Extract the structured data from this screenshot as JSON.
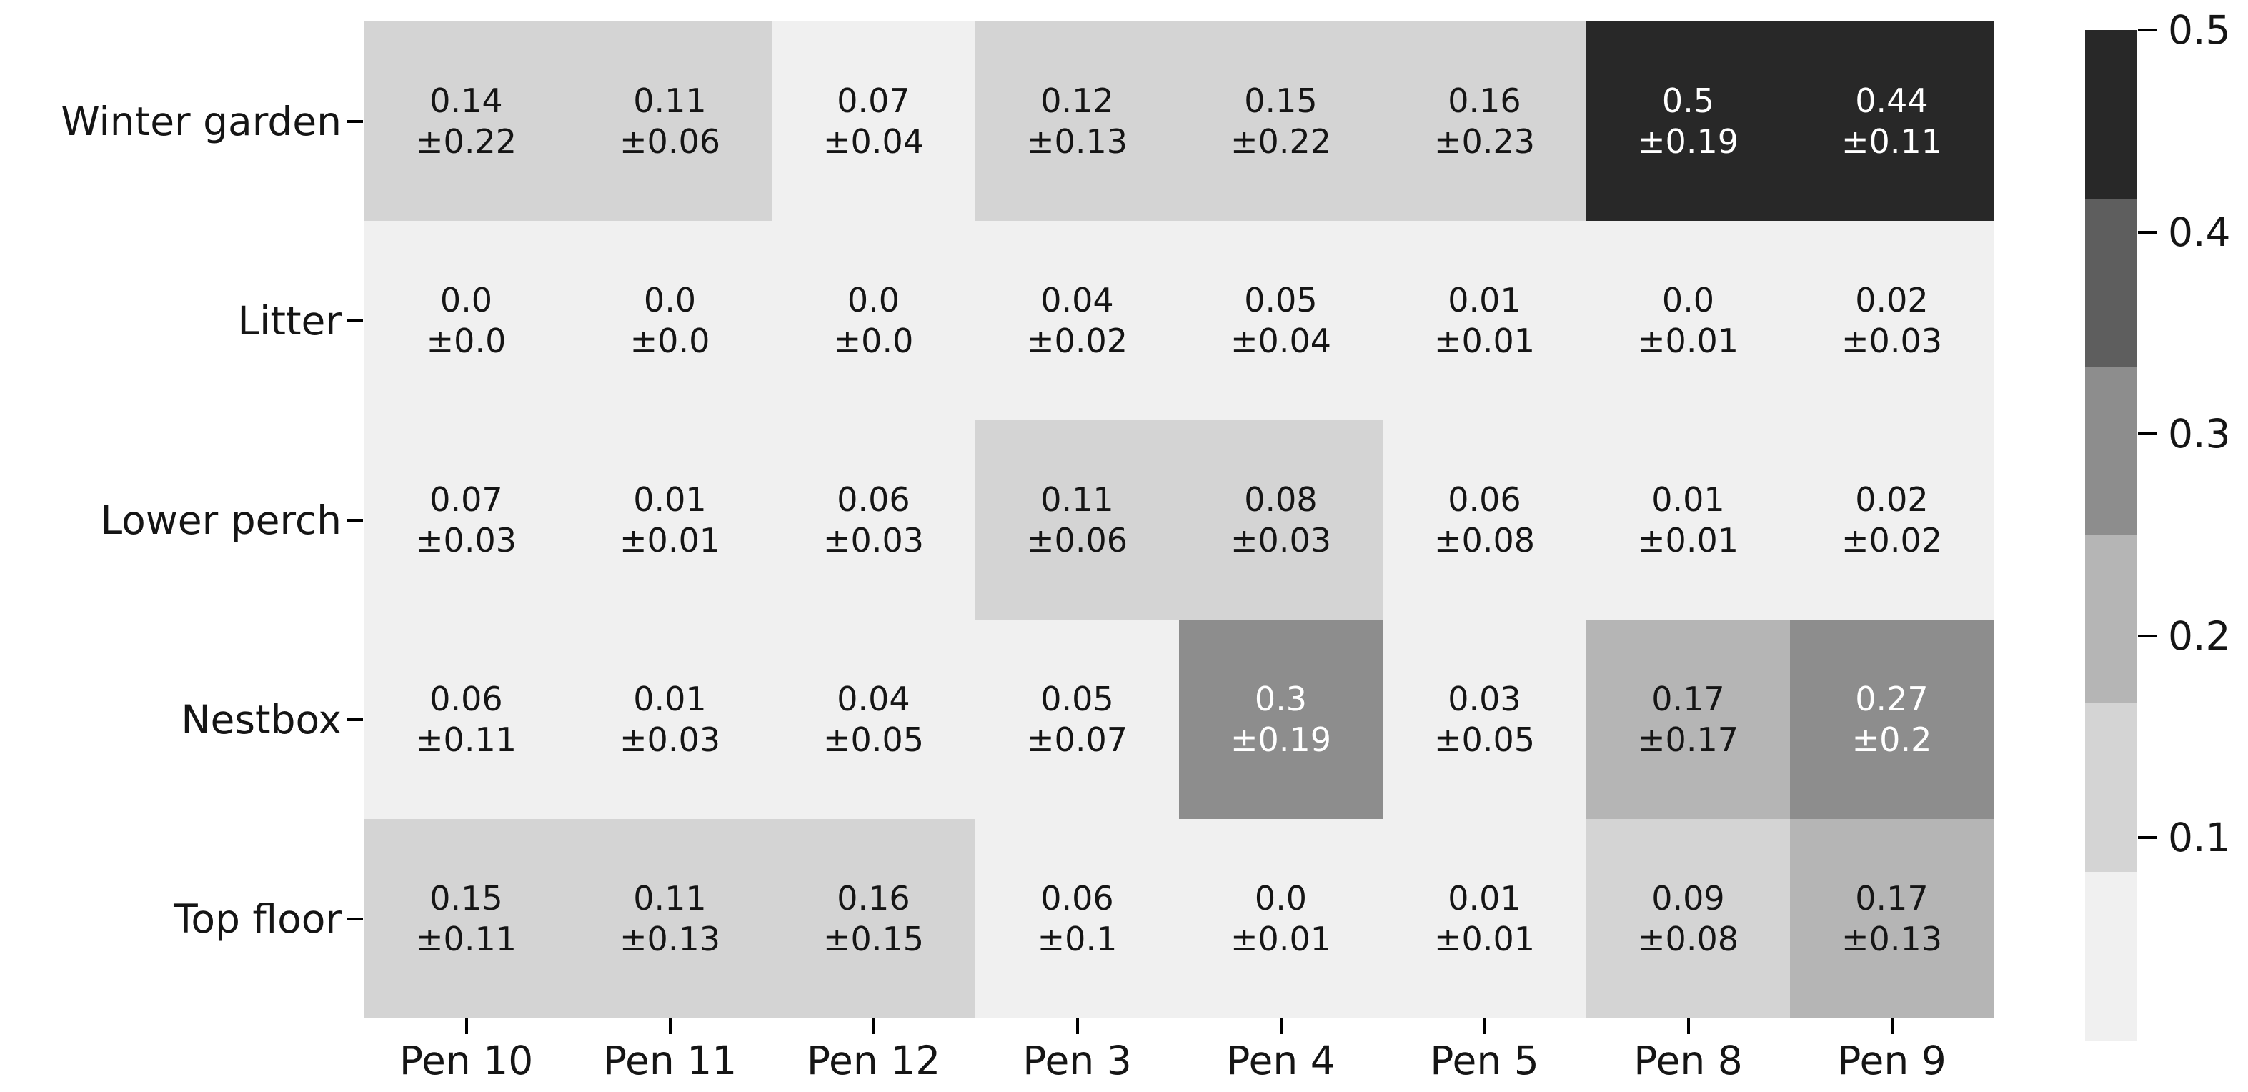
{
  "chart_data": {
    "type": "heatmap",
    "rows": [
      "Winter garden",
      "Litter",
      "Lower perch",
      "Nestbox",
      "Top floor"
    ],
    "columns": [
      "Pen 10",
      "Pen 11",
      "Pen 12",
      "Pen 3",
      "Pen 4",
      "Pen 5",
      "Pen 8",
      "Pen 9"
    ],
    "values": [
      [
        0.14,
        0.11,
        0.07,
        0.12,
        0.15,
        0.16,
        0.5,
        0.44
      ],
      [
        0.0,
        0.0,
        0.0,
        0.04,
        0.05,
        0.01,
        0.0,
        0.02
      ],
      [
        0.07,
        0.01,
        0.06,
        0.11,
        0.08,
        0.06,
        0.01,
        0.02
      ],
      [
        0.06,
        0.01,
        0.04,
        0.05,
        0.3,
        0.03,
        0.17,
        0.27
      ],
      [
        0.15,
        0.11,
        0.16,
        0.06,
        0.0,
        0.01,
        0.09,
        0.17
      ]
    ],
    "errors": [
      [
        0.22,
        0.06,
        0.04,
        0.13,
        0.22,
        0.23,
        0.19,
        0.11
      ],
      [
        0.0,
        0.0,
        0.0,
        0.02,
        0.04,
        0.01,
        0.01,
        0.03
      ],
      [
        0.03,
        0.01,
        0.03,
        0.06,
        0.03,
        0.08,
        0.01,
        0.02
      ],
      [
        0.11,
        0.03,
        0.05,
        0.07,
        0.19,
        0.05,
        0.17,
        0.2
      ],
      [
        0.11,
        0.13,
        0.15,
        0.1,
        0.01,
        0.01,
        0.08,
        0.13
      ]
    ],
    "value_labels": [
      [
        "0.14",
        "0.11",
        "0.07",
        "0.12",
        "0.15",
        "0.16",
        "0.5",
        "0.44"
      ],
      [
        "0.0",
        "0.0",
        "0.0",
        "0.04",
        "0.05",
        "0.01",
        "0.0",
        "0.02"
      ],
      [
        "0.07",
        "0.01",
        "0.06",
        "0.11",
        "0.08",
        "0.06",
        "0.01",
        "0.02"
      ],
      [
        "0.06",
        "0.01",
        "0.04",
        "0.05",
        "0.3",
        "0.03",
        "0.17",
        "0.27"
      ],
      [
        "0.15",
        "0.11",
        "0.16",
        "0.06",
        "0.0",
        "0.01",
        "0.09",
        "0.17"
      ]
    ],
    "error_labels": [
      [
        "±0.22",
        "±0.06",
        "±0.04",
        "±0.13",
        "±0.22",
        "±0.23",
        "±0.19",
        "±0.11"
      ],
      [
        "±0.0",
        "±0.0",
        "±0.0",
        "±0.02",
        "±0.04",
        "±0.01",
        "±0.01",
        "±0.03"
      ],
      [
        "±0.03",
        "±0.01",
        "±0.03",
        "±0.06",
        "±0.03",
        "±0.08",
        "±0.01",
        "±0.02"
      ],
      [
        "±0.11",
        "±0.03",
        "±0.05",
        "±0.07",
        "±0.19",
        "±0.05",
        "±0.17",
        "±0.2"
      ],
      [
        "±0.11",
        "±0.13",
        "±0.15",
        "±0.1",
        "±0.01",
        "±0.01",
        "±0.08",
        "±0.13"
      ]
    ],
    "levels": [
      [
        1,
        1,
        0,
        1,
        1,
        1,
        5,
        5
      ],
      [
        0,
        0,
        0,
        0,
        0,
        0,
        0,
        0
      ],
      [
        0,
        0,
        0,
        1,
        1,
        0,
        0,
        0
      ],
      [
        0,
        0,
        0,
        0,
        3,
        0,
        2,
        3
      ],
      [
        1,
        1,
        1,
        0,
        0,
        0,
        1,
        2
      ]
    ],
    "palette": [
      "#f0f0f0",
      "#d4d4d4",
      "#b5b5b5",
      "#8d8d8d",
      "#5e5e5e",
      "#282828"
    ],
    "annotation_colors": {
      "dark": "#151515",
      "light": "#ffffff"
    },
    "light_text_min_level": 3,
    "grid": false,
    "legend_position": "right",
    "colorbar": {
      "range_min": 0.0,
      "range_max": 0.5,
      "tick_labels": [
        "0.5",
        "0.4",
        "0.3",
        "0.2",
        "0.1"
      ],
      "tick_values": [
        0.5,
        0.4,
        0.3,
        0.2,
        0.1
      ],
      "segment_colors_top_to_bottom": [
        "#282828",
        "#5e5e5e",
        "#8d8d8d",
        "#b5b5b5",
        "#d4d4d4",
        "#f0f0f0"
      ]
    }
  }
}
